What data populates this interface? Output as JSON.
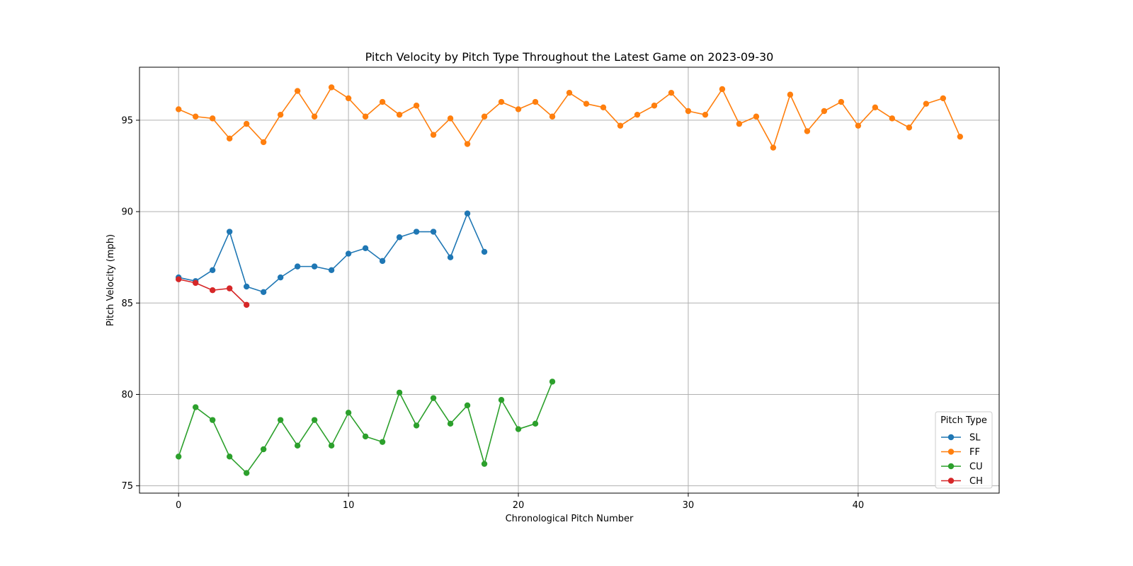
{
  "chart_data": {
    "type": "line",
    "title": "Pitch Velocity by Pitch Type Throughout the Latest Game on 2023-09-30",
    "xlabel": "Chronological Pitch Number",
    "ylabel": "Pitch Velocity (mph)",
    "xlim": [
      -2.3,
      48.3
    ],
    "ylim": [
      74.6,
      97.9
    ],
    "xticks": [
      0,
      10,
      20,
      30,
      40
    ],
    "yticks": [
      75,
      80,
      85,
      90,
      95
    ],
    "grid": true,
    "marker": "circle",
    "legend": {
      "title": "Pitch Type",
      "placement": "lower-right"
    },
    "series": [
      {
        "name": "SL",
        "color": "#1f77b4",
        "values": [
          86.4,
          86.2,
          86.8,
          88.9,
          85.9,
          85.6,
          86.4,
          87.0,
          87.0,
          86.8,
          87.7,
          88.0,
          87.3,
          88.6,
          88.9,
          88.9,
          87.5,
          89.9,
          87.8
        ]
      },
      {
        "name": "FF",
        "color": "#ff7f0e",
        "values": [
          95.6,
          95.2,
          95.1,
          94.0,
          94.8,
          93.8,
          95.3,
          96.6,
          95.2,
          96.8,
          96.2,
          95.2,
          96.0,
          95.3,
          95.8,
          94.2,
          95.1,
          93.7,
          95.2,
          96.0,
          95.6,
          96.0,
          95.2,
          96.5,
          95.9,
          95.7,
          94.7,
          95.3,
          95.8,
          96.5,
          95.5,
          95.3,
          96.7,
          94.8,
          95.2,
          93.5,
          96.4,
          94.4,
          95.5,
          96.0,
          94.7,
          95.7,
          95.1,
          94.6,
          95.9,
          96.2,
          94.1
        ]
      },
      {
        "name": "CU",
        "color": "#2ca02c",
        "values": [
          76.6,
          79.3,
          78.6,
          76.6,
          75.7,
          77.0,
          78.6,
          77.2,
          78.6,
          77.2,
          79.0,
          77.7,
          77.4,
          80.1,
          78.3,
          79.8,
          78.4,
          79.4,
          76.2,
          79.7,
          78.1,
          78.4,
          80.7
        ]
      },
      {
        "name": "CH",
        "color": "#d62728",
        "values": [
          86.3,
          86.1,
          85.7,
          85.8,
          84.9
        ]
      }
    ]
  }
}
